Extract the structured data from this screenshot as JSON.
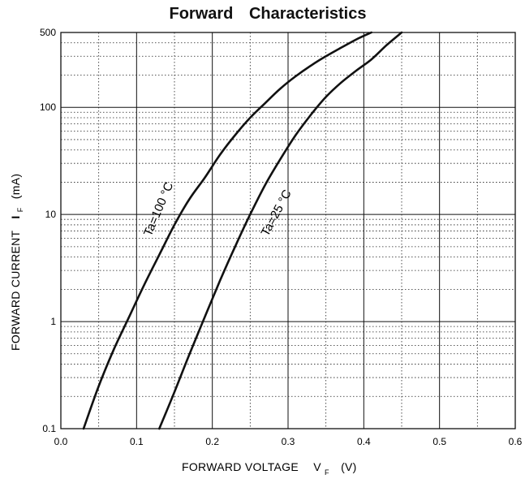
{
  "chart_data": {
    "type": "line",
    "title": "Forward    Characteristics",
    "xlabel": "FORWARD VOLTAGE",
    "xlabel_symbol": "V",
    "xlabel_subscript": "F",
    "xlabel_unit": "(V)",
    "ylabel": "FORWARD CURRENT",
    "ylabel_symbol": "I",
    "ylabel_subscript": "F",
    "ylabel_unit": "(mA)",
    "xlim": [
      0.0,
      0.6
    ],
    "ylim": [
      0.1,
      500
    ],
    "yscale": "log",
    "grid": true,
    "x_ticks": [
      "0.0",
      "0.1",
      "0.2",
      "0.3",
      "0.4",
      "0.5",
      "0.6"
    ],
    "y_ticks": [
      {
        "value": 0.1,
        "label": "0.1"
      },
      {
        "value": 1,
        "label": "1"
      },
      {
        "value": 10,
        "label": "10"
      },
      {
        "value": 100,
        "label": "100"
      },
      {
        "value": 500,
        "label": "500"
      }
    ],
    "series": [
      {
        "name": "Ta=100 °C",
        "color": "#111111",
        "points": [
          [
            0.03,
            0.1
          ],
          [
            0.05,
            0.25
          ],
          [
            0.07,
            0.55
          ],
          [
            0.09,
            1.1
          ],
          [
            0.11,
            2.2
          ],
          [
            0.13,
            4.2
          ],
          [
            0.15,
            8.0
          ],
          [
            0.17,
            14
          ],
          [
            0.19,
            22
          ],
          [
            0.21,
            36
          ],
          [
            0.23,
            55
          ],
          [
            0.25,
            80
          ],
          [
            0.27,
            110
          ],
          [
            0.29,
            150
          ],
          [
            0.31,
            195
          ],
          [
            0.33,
            245
          ],
          [
            0.35,
            300
          ],
          [
            0.37,
            360
          ],
          [
            0.39,
            430
          ],
          [
            0.41,
            500
          ]
        ]
      },
      {
        "name": "Ta=25 °C",
        "color": "#111111",
        "points": [
          [
            0.13,
            0.1
          ],
          [
            0.15,
            0.22
          ],
          [
            0.17,
            0.5
          ],
          [
            0.19,
            1.1
          ],
          [
            0.21,
            2.4
          ],
          [
            0.23,
            5.0
          ],
          [
            0.25,
            10
          ],
          [
            0.27,
            19
          ],
          [
            0.29,
            33
          ],
          [
            0.31,
            55
          ],
          [
            0.33,
            85
          ],
          [
            0.35,
            125
          ],
          [
            0.37,
            170
          ],
          [
            0.39,
            220
          ],
          [
            0.41,
            280
          ],
          [
            0.43,
            380
          ],
          [
            0.45,
            500
          ]
        ]
      }
    ]
  }
}
